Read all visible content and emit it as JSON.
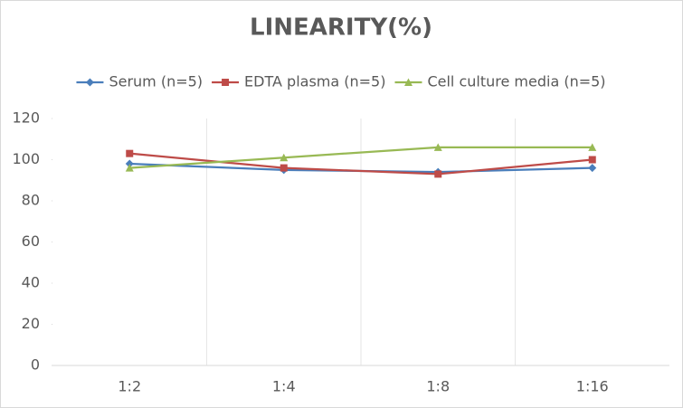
{
  "chart_data": {
    "type": "line",
    "title": "LINEARITY(%)",
    "categories": [
      "1:2",
      "1:4",
      "1:8",
      "1:16"
    ],
    "series": [
      {
        "name": "Serum (n=5)",
        "color": "#4a7ebb",
        "marker": "diamond",
        "values": [
          98,
          95,
          94,
          96
        ]
      },
      {
        "name": "EDTA plasma (n=5)",
        "color": "#be4b48",
        "marker": "square",
        "values": [
          103,
          96,
          93,
          100
        ]
      },
      {
        "name": "Cell culture media (n=5)",
        "color": "#98b954",
        "marker": "triangle",
        "values": [
          96,
          101,
          106,
          106
        ]
      }
    ],
    "ylim": [
      0,
      120
    ],
    "yticks": [
      0,
      20,
      40,
      60,
      80,
      100,
      120
    ],
    "legend": "top"
  }
}
